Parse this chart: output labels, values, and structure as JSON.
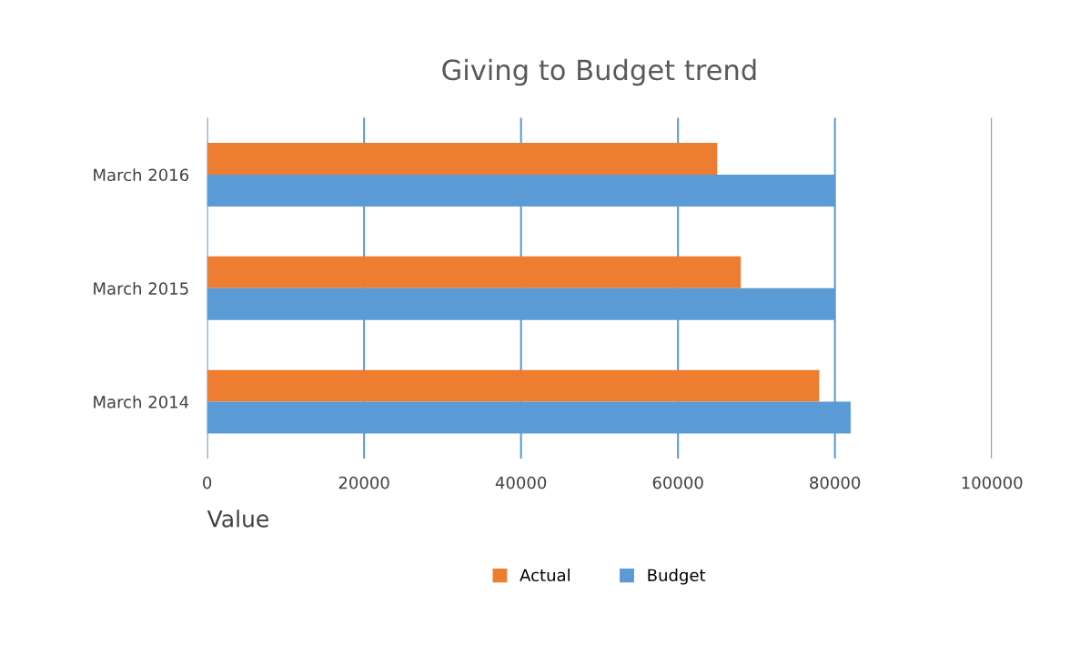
{
  "chart_data": {
    "type": "bar",
    "orientation": "horizontal",
    "title": "Giving to Budget trend",
    "xlabel": "Value",
    "categories": [
      "March 2016",
      "March 2015",
      "March 2014"
    ],
    "series": [
      {
        "name": "Actual",
        "color": "#ed7d31",
        "values": [
          65000,
          68000,
          78000
        ]
      },
      {
        "name": "Budget",
        "color": "#5b9bd5",
        "values": [
          80000,
          80000,
          82000
        ]
      }
    ],
    "xlim": [
      0,
      100000
    ],
    "xticks": [
      0,
      20000,
      40000,
      60000,
      80000,
      100000
    ],
    "grid": "x",
    "legend": "bottom"
  }
}
